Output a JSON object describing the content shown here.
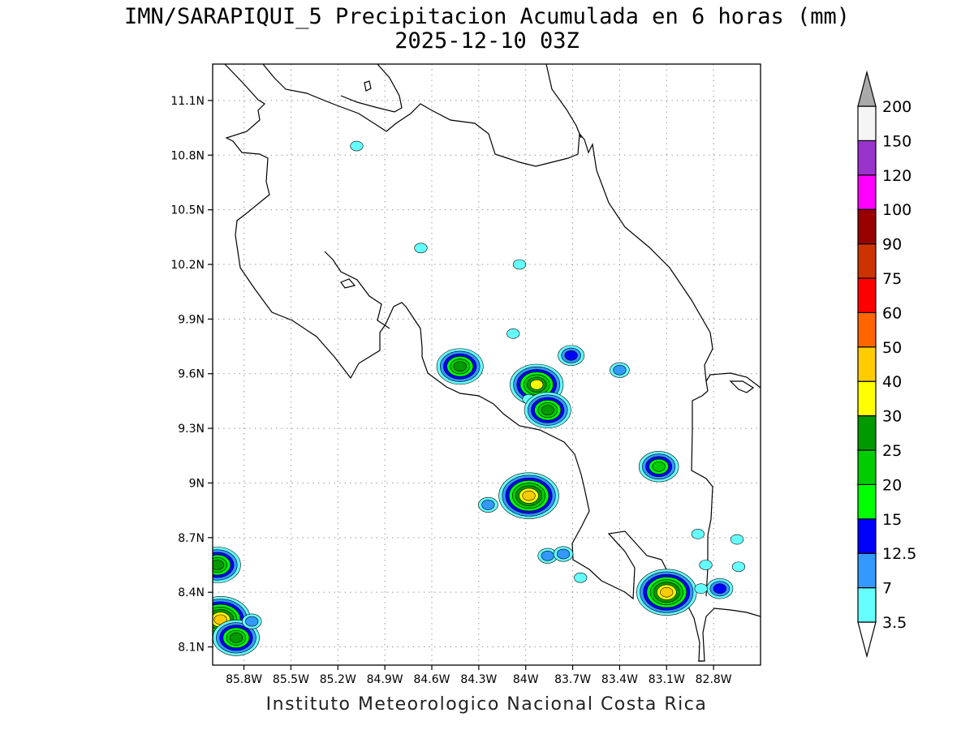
{
  "header": {
    "title": "IMN/SARAPIQUI_5 Precipitacion Acumulada en 6 horas (mm)",
    "subtitle": "2025-12-10 03Z"
  },
  "footer": {
    "credit": "Instituto Meteorologico Nacional Costa Rica"
  },
  "map": {
    "lon_range": [
      -86.0,
      -82.5
    ],
    "lat_range": [
      8.0,
      11.3
    ],
    "lat_ticks": [
      {
        "value": 8.1,
        "label": "8.1N"
      },
      {
        "value": 8.4,
        "label": "8.4N"
      },
      {
        "value": 8.7,
        "label": "8.7N"
      },
      {
        "value": 9.0,
        "label": "9N"
      },
      {
        "value": 9.3,
        "label": "9.3N"
      },
      {
        "value": 9.6,
        "label": "9.6N"
      },
      {
        "value": 9.9,
        "label": "9.9N"
      },
      {
        "value": 10.2,
        "label": "10.2N"
      },
      {
        "value": 10.5,
        "label": "10.5N"
      },
      {
        "value": 10.8,
        "label": "10.8N"
      },
      {
        "value": 11.1,
        "label": "11.1N"
      }
    ],
    "lon_ticks": [
      {
        "value": -85.8,
        "label": "85.8W"
      },
      {
        "value": -85.5,
        "label": "85.5W"
      },
      {
        "value": -85.2,
        "label": "85.2W"
      },
      {
        "value": -84.9,
        "label": "84.9W"
      },
      {
        "value": -84.6,
        "label": "84.6W"
      },
      {
        "value": -84.3,
        "label": "84.3W"
      },
      {
        "value": -84.0,
        "label": "84W"
      },
      {
        "value": -83.7,
        "label": "83.7W"
      },
      {
        "value": -83.4,
        "label": "83.4W"
      },
      {
        "value": -83.1,
        "label": "83.1W"
      },
      {
        "value": -82.8,
        "label": "82.8W"
      }
    ],
    "grid": true
  },
  "legend": {
    "levels": [
      {
        "label": "3.5",
        "color": "#66ffff"
      },
      {
        "label": "7",
        "color": "#3399ff"
      },
      {
        "label": "12.5",
        "color": "#0000ff"
      },
      {
        "label": "15",
        "color": "#00ff00"
      },
      {
        "label": "20",
        "color": "#00cc00"
      },
      {
        "label": "25",
        "color": "#009900"
      },
      {
        "label": "30",
        "color": "#ffff00"
      },
      {
        "label": "40",
        "color": "#ffcc00"
      },
      {
        "label": "50",
        "color": "#ff6600"
      },
      {
        "label": "60",
        "color": "#ff0000"
      },
      {
        "label": "75",
        "color": "#cc3300"
      },
      {
        "label": "90",
        "color": "#990000"
      },
      {
        "label": "100",
        "color": "#ff00ff"
      },
      {
        "label": "120",
        "color": "#9933cc"
      },
      {
        "label": "150",
        "color": "#f5f5f5"
      },
      {
        "label": "200",
        "color": "#aaaaaa"
      }
    ]
  },
  "chart_data": {
    "type": "heatmap",
    "title": "IMN/SARAPIQUI_5 Precipitacion Acumulada en 6 horas (mm)",
    "subtitle": "2025-12-10 03Z",
    "xlim": [
      -86.0,
      -82.5
    ],
    "ylim": [
      8.0,
      11.3
    ],
    "cells": [
      {
        "lon": -84.42,
        "lat": 9.64,
        "value": 25
      },
      {
        "lon": -84.08,
        "lat": 9.82,
        "value": 3.5
      },
      {
        "lon": -83.93,
        "lat": 9.54,
        "value": 30
      },
      {
        "lon": -83.98,
        "lat": 9.46,
        "value": 3.5
      },
      {
        "lon": -83.86,
        "lat": 9.4,
        "value": 25
      },
      {
        "lon": -83.71,
        "lat": 9.7,
        "value": 12.5
      },
      {
        "lon": -83.4,
        "lat": 9.62,
        "value": 7
      },
      {
        "lon": -84.04,
        "lat": 10.2,
        "value": 3.5
      },
      {
        "lon": -84.67,
        "lat": 10.29,
        "value": 3.5
      },
      {
        "lon": -85.08,
        "lat": 10.85,
        "value": 3.5
      },
      {
        "lon": -83.98,
        "lat": 8.93,
        "value": 40
      },
      {
        "lon": -84.24,
        "lat": 8.88,
        "value": 7
      },
      {
        "lon": -83.15,
        "lat": 9.09,
        "value": 20
      },
      {
        "lon": -83.86,
        "lat": 8.6,
        "value": 7
      },
      {
        "lon": -83.76,
        "lat": 8.61,
        "value": 7
      },
      {
        "lon": -83.65,
        "lat": 8.48,
        "value": 3.5
      },
      {
        "lon": -83.1,
        "lat": 8.4,
        "value": 40
      },
      {
        "lon": -82.76,
        "lat": 8.42,
        "value": 12.5
      },
      {
        "lon": -82.88,
        "lat": 8.42,
        "value": 3.5
      },
      {
        "lon": -82.9,
        "lat": 8.72,
        "value": 3.5
      },
      {
        "lon": -82.65,
        "lat": 8.69,
        "value": 3.5
      },
      {
        "lon": -82.64,
        "lat": 8.54,
        "value": 3.5
      },
      {
        "lon": -82.85,
        "lat": 8.55,
        "value": 3.5
      },
      {
        "lon": -85.97,
        "lat": 8.55,
        "value": 25
      },
      {
        "lon": -85.95,
        "lat": 8.25,
        "value": 40
      },
      {
        "lon": -85.85,
        "lat": 8.15,
        "value": 25
      },
      {
        "lon": -85.75,
        "lat": 8.24,
        "value": 7
      }
    ]
  }
}
